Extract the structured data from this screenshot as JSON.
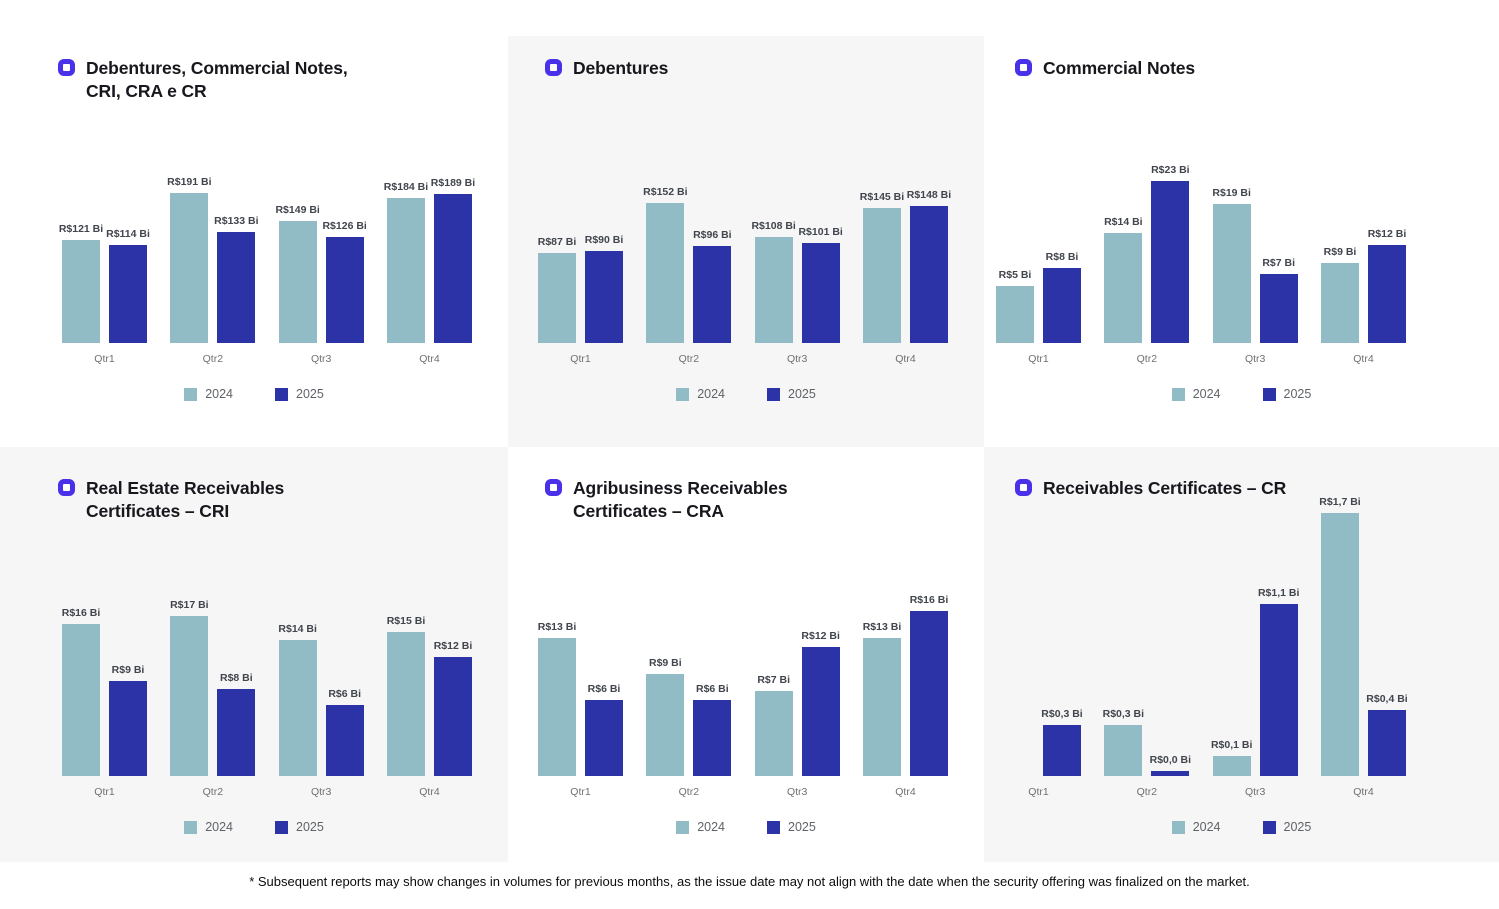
{
  "footnote": "* Subsequent reports may show changes in volumes for previous months, as the issue date may not align with the date when the security offering was finalized on the market.",
  "colors": {
    "series_2024": "#91bbc5",
    "series_2025": "#2c33a6",
    "icon_accent": "#4831e9",
    "title_text": "#17171d",
    "value_label": "#41454d",
    "axis_label": "#6d7073",
    "panel_gray": "#f6f6f6"
  },
  "chart_data": [
    {
      "type": "bar",
      "title": "Debentures, Commercial Notes, CRI, CRA e CR",
      "unit": "R$ Bi",
      "categories": [
        "Qtr1",
        "Qtr2",
        "Qtr3",
        "Qtr4"
      ],
      "series": [
        {
          "name": "2024",
          "values": [
            121,
            191,
            149,
            184
          ],
          "labels": [
            "R$121 Bi",
            "R$191 Bi",
            "R$149 Bi",
            "R$184 Bi"
          ]
        },
        {
          "name": "2025",
          "values": [
            114,
            133,
            126,
            189
          ],
          "labels": [
            "R$114 Bi",
            "R$133 Bi",
            "R$126 Bi",
            "R$189 Bi"
          ]
        }
      ],
      "legend_position": "bottom",
      "grid": false,
      "y_axis_visible": false
    },
    {
      "type": "bar",
      "title": "Debentures",
      "unit": "R$ Bi",
      "categories": [
        "Qtr1",
        "Qtr2",
        "Qtr3",
        "Qtr4"
      ],
      "series": [
        {
          "name": "2024",
          "values": [
            87,
            152,
            108,
            145
          ],
          "labels": [
            "R$87 Bi",
            "R$152 Bi",
            "R$108 Bi",
            "R$145 Bi"
          ]
        },
        {
          "name": "2025",
          "values": [
            90,
            96,
            101,
            148
          ],
          "labels": [
            "R$90 Bi",
            "R$96 Bi",
            "R$101 Bi",
            "R$148 Bi"
          ]
        }
      ],
      "legend_position": "bottom",
      "grid": false,
      "y_axis_visible": false
    },
    {
      "type": "bar",
      "title": "Commercial Notes",
      "unit": "R$ Bi",
      "categories": [
        "Qtr1",
        "Qtr2",
        "Qtr3",
        "Qtr4"
      ],
      "series": [
        {
          "name": "2024",
          "values": [
            5,
            14,
            19,
            9
          ],
          "labels": [
            "R$5 Bi",
            "R$14 Bi",
            "R$19 Bi",
            "R$9 Bi"
          ]
        },
        {
          "name": "2025",
          "values": [
            8,
            23,
            7,
            12
          ],
          "labels": [
            "R$8 Bi",
            "R$23 Bi",
            "R$7 Bi",
            "R$12 Bi"
          ]
        }
      ],
      "legend_position": "bottom",
      "grid": false,
      "y_axis_visible": false
    },
    {
      "type": "bar",
      "title": "Real Estate Receivables Certificates – CRI",
      "unit": "R$ Bi",
      "categories": [
        "Qtr1",
        "Qtr2",
        "Qtr3",
        "Qtr4"
      ],
      "series": [
        {
          "name": "2024",
          "values": [
            16,
            17,
            14,
            15
          ],
          "labels": [
            "R$16 Bi",
            "R$17 Bi",
            "R$14 Bi",
            "R$15 Bi"
          ]
        },
        {
          "name": "2025",
          "values": [
            9,
            8,
            6,
            12
          ],
          "labels": [
            "R$9 Bi",
            "R$8 Bi",
            "R$6 Bi",
            "R$12 Bi"
          ]
        }
      ],
      "legend_position": "bottom",
      "grid": false,
      "y_axis_visible": false
    },
    {
      "type": "bar",
      "title": "Agribusiness Receivables Certificates – CRA",
      "unit": "R$ Bi",
      "categories": [
        "Qtr1",
        "Qtr2",
        "Qtr3",
        "Qtr4"
      ],
      "series": [
        {
          "name": "2024",
          "values": [
            13,
            9,
            7,
            13
          ],
          "labels": [
            "R$13 Bi",
            "R$9 Bi",
            "R$7 Bi",
            "R$13 Bi"
          ]
        },
        {
          "name": "2025",
          "values": [
            6,
            6,
            12,
            16
          ],
          "labels": [
            "R$6 Bi",
            "R$6 Bi",
            "R$12 Bi",
            "R$16 Bi"
          ]
        }
      ],
      "legend_position": "bottom",
      "grid": false,
      "y_axis_visible": false
    },
    {
      "type": "bar",
      "title": "Receivables Certificates – CR",
      "unit": "R$ Bi",
      "categories": [
        "Qtr1",
        "Qtr2",
        "Qtr3",
        "Qtr4"
      ],
      "series": [
        {
          "name": "2024",
          "values": [
            null,
            0.3,
            0.1,
            1.7
          ],
          "labels": [
            null,
            "R$0,3 Bi",
            "R$0,1 Bi",
            "R$1,7 Bi"
          ]
        },
        {
          "name": "2025",
          "values": [
            0.3,
            0.0,
            1.1,
            0.4
          ],
          "labels": [
            "R$0,3 Bi",
            "R$0,0 Bi",
            "R$1,1 Bi",
            "R$0,4 Bi"
          ]
        }
      ],
      "legend_position": "bottom",
      "grid": false,
      "y_axis_visible": false
    }
  ]
}
